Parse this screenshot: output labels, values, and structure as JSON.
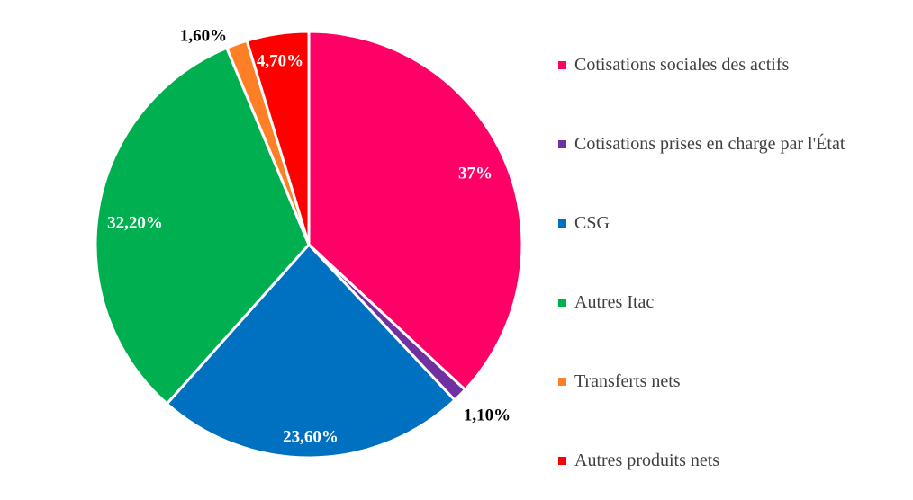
{
  "chart_data": {
    "type": "pie",
    "title": "",
    "series": [
      {
        "name": "Cotisations sociales des actifs",
        "value": 37,
        "label": "37%",
        "color": "#FF0066",
        "label_color": "#ffffff"
      },
      {
        "name": "Cotisations prises en charge par l'État",
        "value": 1.1,
        "label": "1,10%",
        "color": "#7030A0",
        "label_color": "#000000"
      },
      {
        "name": "CSG",
        "value": 23.6,
        "label": "23,60%",
        "color": "#0070C0",
        "label_color": "#ffffff"
      },
      {
        "name": "Autres Itac",
        "value": 32.2,
        "label": "32,20%",
        "color": "#00B050",
        "label_color": "#ffffff"
      },
      {
        "name": "Transferts nets",
        "value": 1.6,
        "label": "1,60%",
        "color": "#FF7F27",
        "label_color": "#000000"
      },
      {
        "name": "Autres produits nets",
        "value": 4.7,
        "label": "4,70%",
        "color": "#FF0000",
        "label_color": "#ffffff"
      }
    ],
    "legend_position": "right",
    "start_angle": "12 o'clock",
    "direction": "clockwise"
  }
}
